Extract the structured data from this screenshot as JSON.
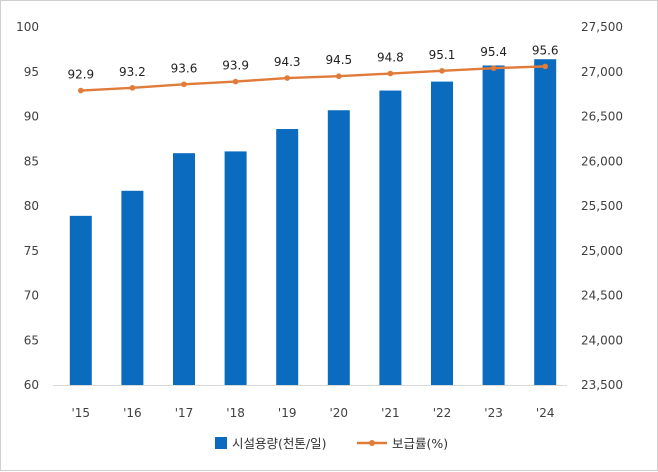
{
  "chart_data": {
    "type": "bar+line",
    "categories": [
      "'15",
      "'16",
      "'17",
      "'18",
      "'19",
      "'20",
      "'21",
      "'22",
      "'23",
      "'24"
    ],
    "series": [
      {
        "name": "시설용량(천톤/일)",
        "type": "bar",
        "axis": "right",
        "color": "#0b6bbf",
        "values": [
          25390,
          25670,
          26090,
          26110,
          26360,
          26570,
          26790,
          26890,
          27070,
          27140
        ]
      },
      {
        "name": "보급률(%)",
        "type": "line",
        "axis": "left",
        "color": "#e07b39",
        "values": [
          92.9,
          93.2,
          93.6,
          93.9,
          94.3,
          94.5,
          94.8,
          95.1,
          95.4,
          95.6
        ],
        "labels": [
          "92.9",
          "93.2",
          "93.6",
          "93.9",
          "94.3",
          "94.5",
          "94.8",
          "95.1",
          "95.4",
          "95.6"
        ]
      }
    ],
    "y_left": {
      "ylim": [
        60,
        100
      ],
      "ticks": [
        "60",
        "65",
        "70",
        "75",
        "80",
        "85",
        "90",
        "95",
        "100"
      ]
    },
    "y_right": {
      "ylim": [
        23500,
        27500
      ],
      "ticks": [
        "23,500",
        "24,000",
        "24,500",
        "25,000",
        "25,500",
        "26,000",
        "26,500",
        "27,000",
        "27,500"
      ]
    },
    "grid": false,
    "legend_position": "bottom"
  }
}
